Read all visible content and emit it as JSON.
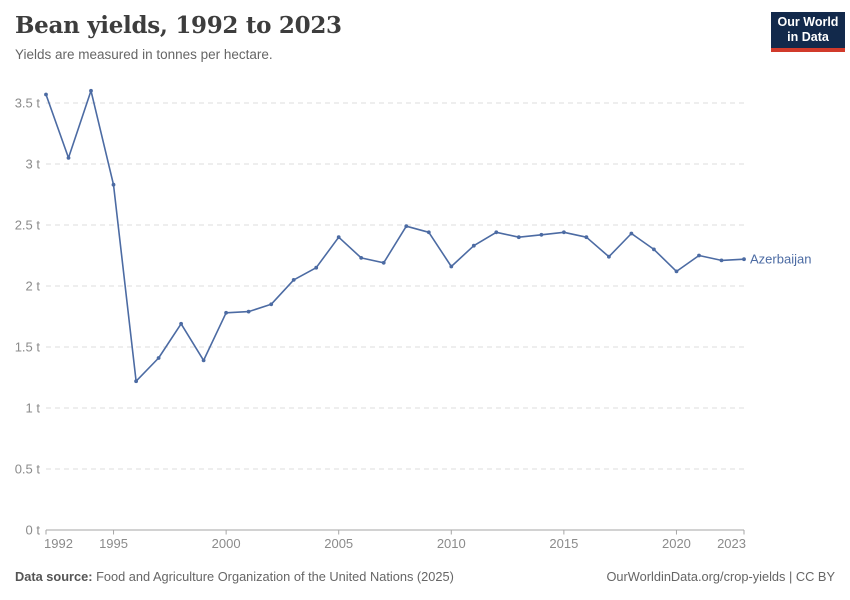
{
  "header": {
    "title": "Bean yields, 1992 to 2023",
    "subtitle": "Yields are measured in tonnes per hectare.",
    "logo": {
      "line1": "Our World",
      "line2": "in Data",
      "bg_color": "#12294b",
      "accent_color": "#d13a2b"
    }
  },
  "chart_data": {
    "type": "line",
    "title": "Bean yields, 1992 to 2023",
    "unit": "tonnes per hectare",
    "x": [
      1992,
      1993,
      1994,
      1995,
      1996,
      1997,
      1998,
      1999,
      2000,
      2001,
      2002,
      2003,
      2004,
      2005,
      2006,
      2007,
      2008,
      2009,
      2010,
      2011,
      2012,
      2013,
      2014,
      2015,
      2016,
      2017,
      2018,
      2019,
      2020,
      2021,
      2022,
      2023
    ],
    "series": [
      {
        "name": "Azerbaijan",
        "color": "#4c6ba3",
        "values": [
          3.57,
          3.05,
          3.6,
          2.83,
          1.22,
          1.41,
          1.69,
          1.39,
          1.78,
          1.79,
          1.85,
          2.05,
          2.15,
          2.4,
          2.23,
          2.19,
          2.49,
          2.44,
          2.16,
          2.33,
          2.44,
          2.4,
          2.42,
          2.44,
          2.4,
          2.24,
          2.43,
          2.3,
          2.12,
          2.25,
          2.21,
          2.22
        ]
      }
    ],
    "ylim": [
      0,
      3.6
    ],
    "yticks": [
      {
        "value": 0,
        "label": "0 t"
      },
      {
        "value": 0.5,
        "label": "0.5 t"
      },
      {
        "value": 1,
        "label": "1 t"
      },
      {
        "value": 1.5,
        "label": "1.5 t"
      },
      {
        "value": 2,
        "label": "2 t"
      },
      {
        "value": 2.5,
        "label": "2.5 t"
      },
      {
        "value": 3,
        "label": "3 t"
      },
      {
        "value": 3.5,
        "label": "3.5 t"
      }
    ],
    "xticks": [
      {
        "value": 1992,
        "label": "1992"
      },
      {
        "value": 1995,
        "label": "1995"
      },
      {
        "value": 2000,
        "label": "2000"
      },
      {
        "value": 2005,
        "label": "2005"
      },
      {
        "value": 2010,
        "label": "2010"
      },
      {
        "value": 2015,
        "label": "2015"
      },
      {
        "value": 2020,
        "label": "2020"
      },
      {
        "value": 2023,
        "label": "2023"
      }
    ],
    "grid": true,
    "legend_position": "end-of-line",
    "grid_color": "#dedede",
    "axis_color": "#a6a6a6"
  },
  "footer": {
    "source_label": "Data source:",
    "source_text": " Food and Agriculture Organization of the United Nations (2025)",
    "right_text": "OurWorldinData.org/crop-yields | CC BY"
  }
}
